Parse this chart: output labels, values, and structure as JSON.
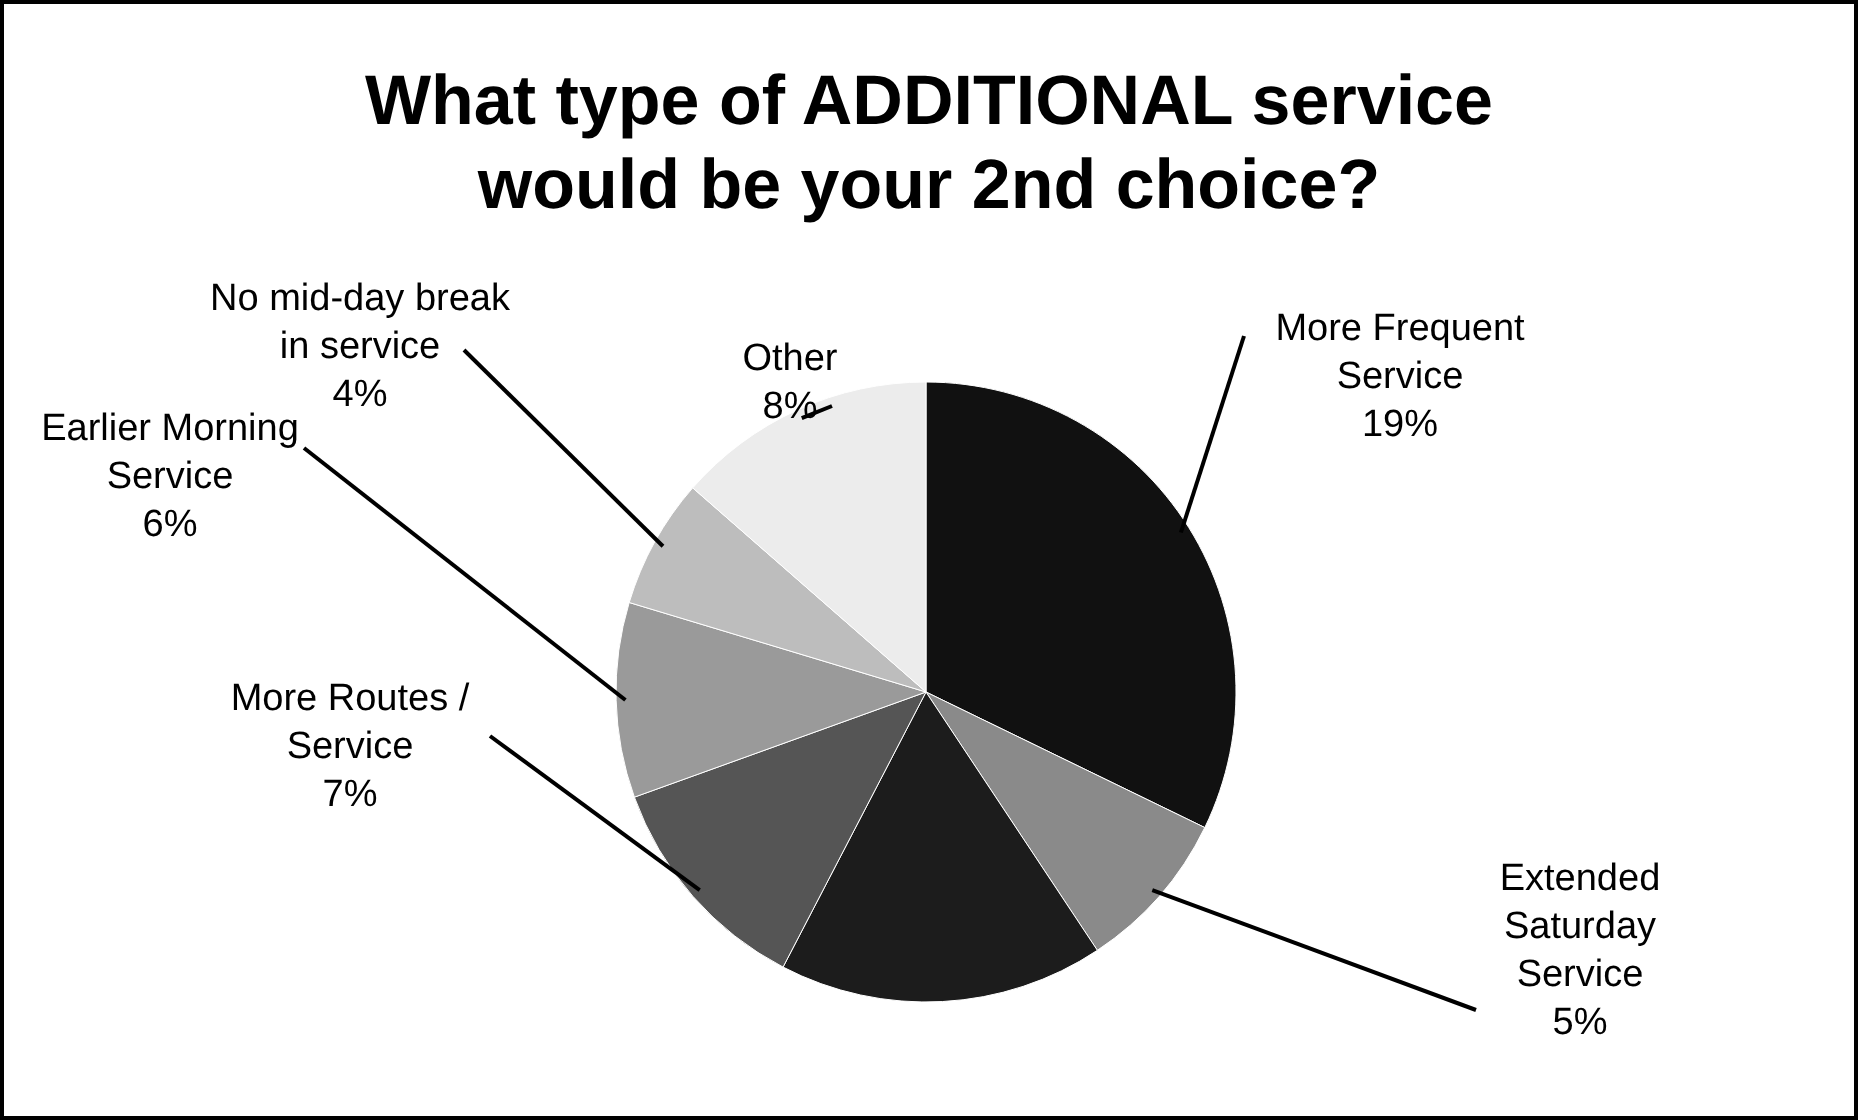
{
  "chart_data": {
    "type": "pie",
    "title": "What type of ADDITIONAL service would be your 2nd choice?",
    "categories": [
      "More Frequent Service",
      "Extended Saturday Service",
      null,
      "More Routes / Service",
      "Earlier Morning Service",
      "No mid-day break in service",
      "Other"
    ],
    "values": [
      19,
      5,
      10,
      7,
      6,
      4,
      8
    ],
    "value_labels": [
      "19%",
      "5%",
      null,
      "7%",
      "6%",
      "4%",
      "8%"
    ],
    "colors": [
      "#111111",
      "#8a8a8a",
      "#1c1c1c",
      "#555555",
      "#9a9a9a",
      "#bdbdbd",
      "#ececec"
    ]
  }
}
